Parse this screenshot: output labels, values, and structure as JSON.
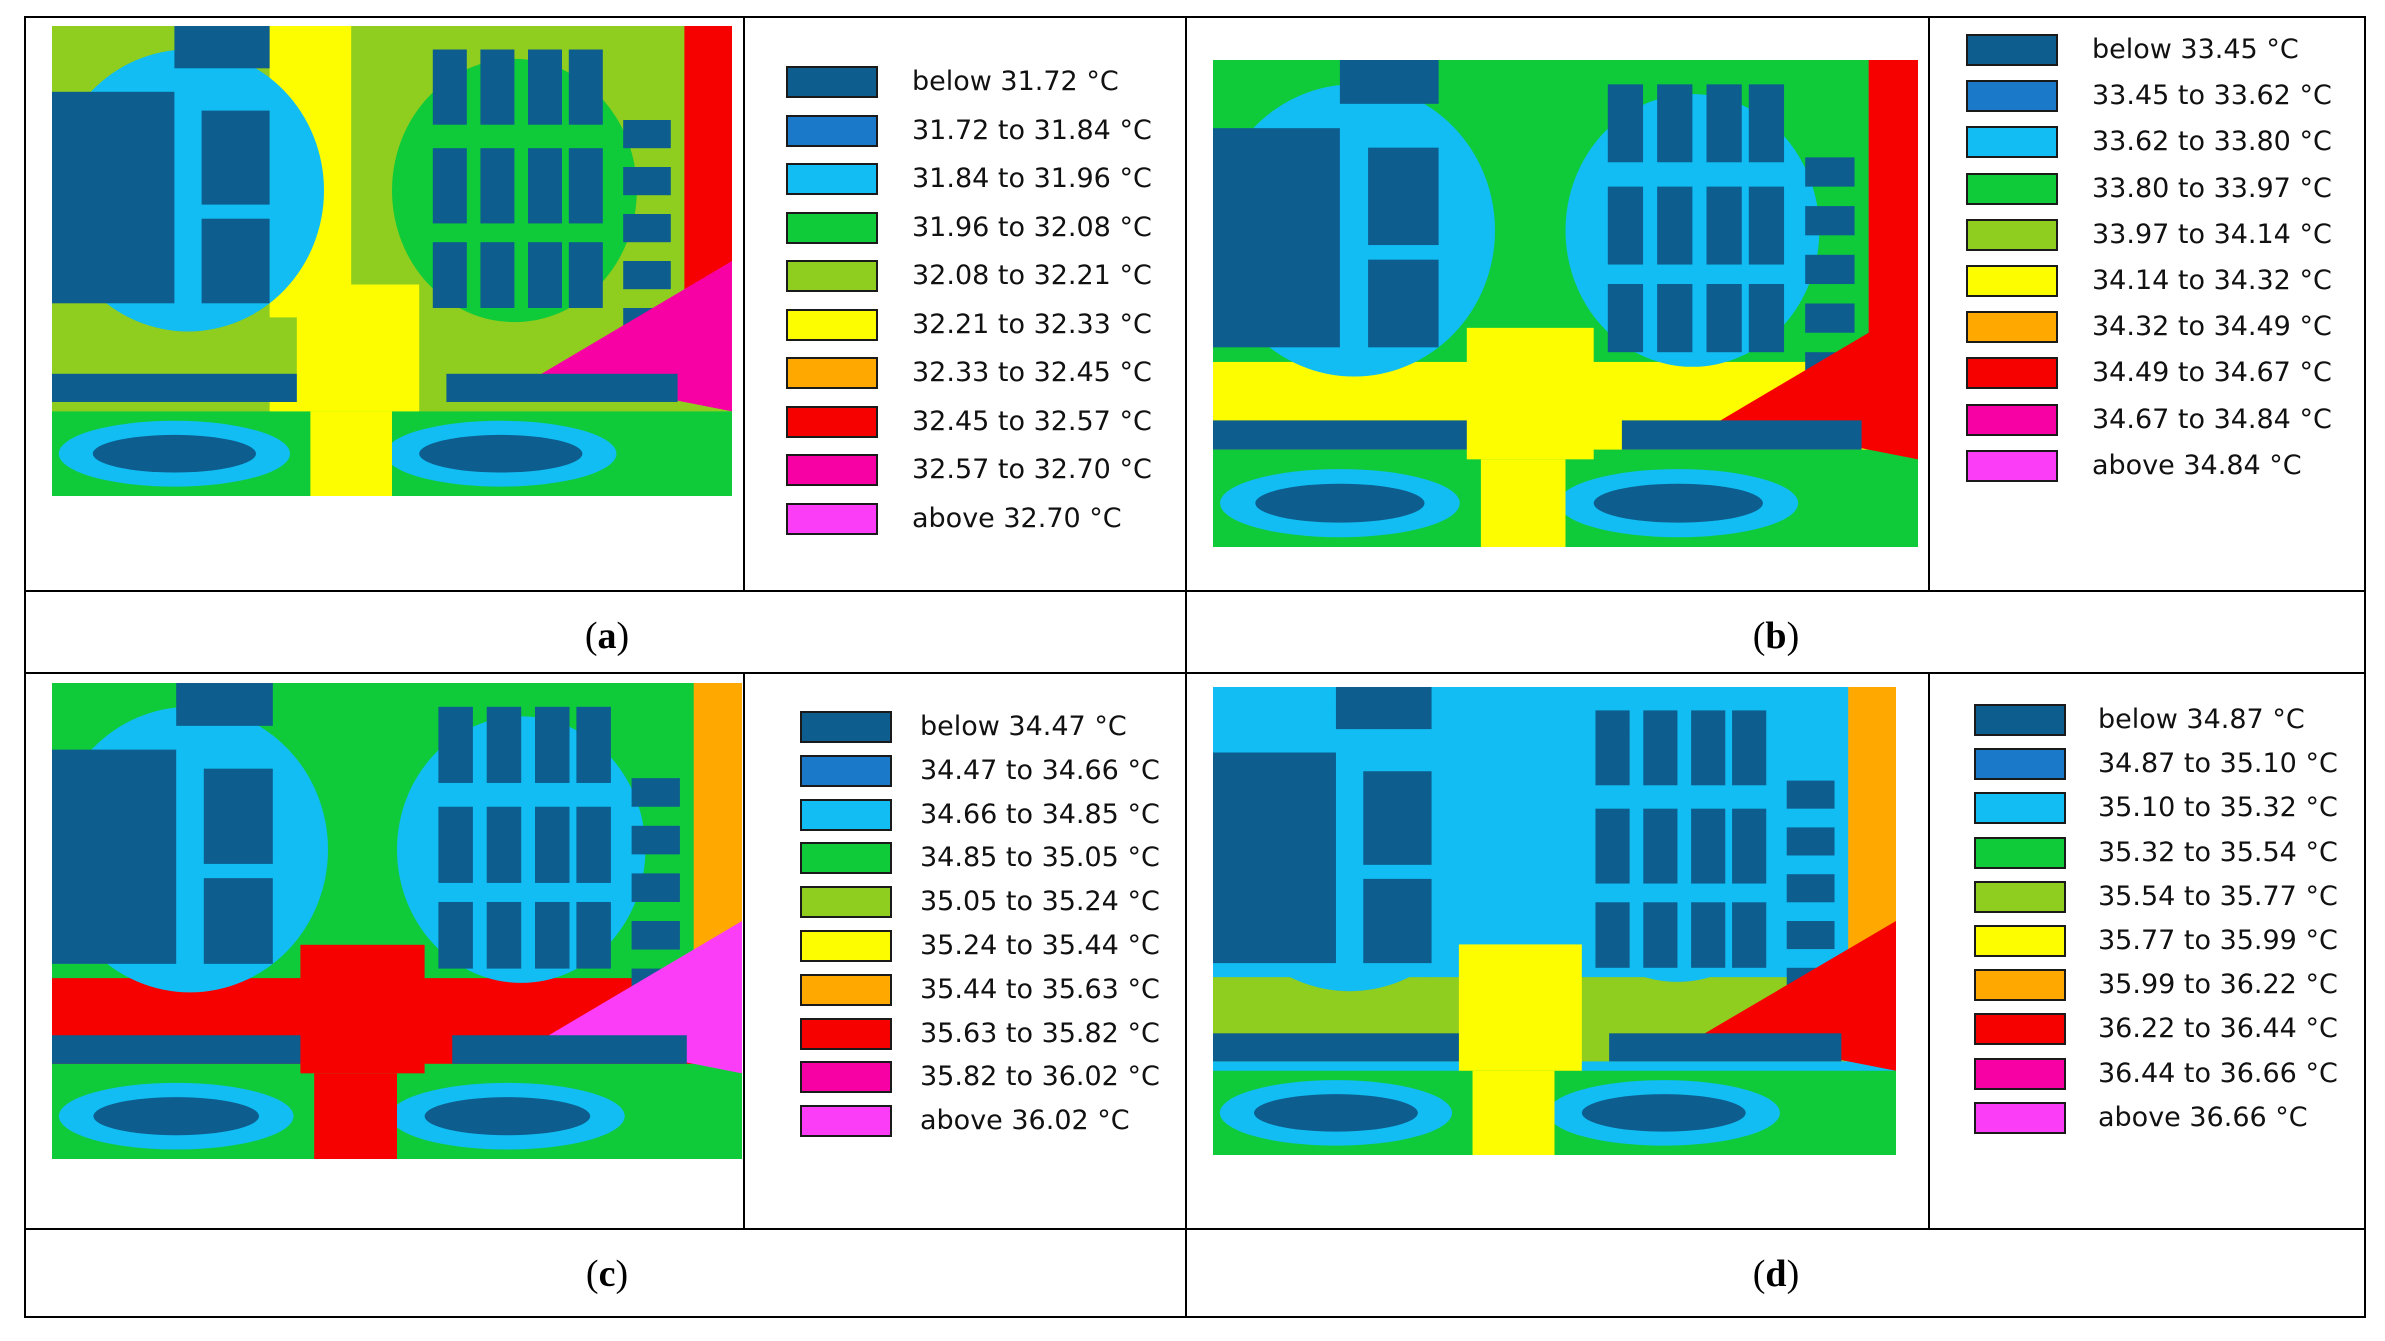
{
  "chart_data": [
    {
      "type": "heatmap",
      "panel": "a",
      "unit": "°C",
      "legend_colors": [
        "#0d5d8f",
        "#1a79c9",
        "#11bdf2",
        "#0fcb3a",
        "#8fcd1e",
        "#fdfd00",
        "#ffa800",
        "#f70000",
        "#f700a4",
        "#fb3df7"
      ],
      "legend_labels": [
        "below 31.72 °C",
        "31.72 to 31.84 °C",
        "31.84 to 31.96 °C",
        "31.96 to 32.08 °C",
        "32.08 to 32.21 °C",
        "32.21 to 32.33 °C",
        "32.33 to 32.45 °C",
        "32.45 to 32.57 °C",
        "32.57 to 32.70 °C",
        "above 32.70 °C"
      ]
    },
    {
      "type": "heatmap",
      "panel": "b",
      "unit": "°C",
      "legend_colors": [
        "#0d5d8f",
        "#1a79c9",
        "#11bdf2",
        "#0fcb3a",
        "#8fcd1e",
        "#fdfd00",
        "#ffa800",
        "#f70000",
        "#f700a4",
        "#fb3df7"
      ],
      "legend_labels": [
        "below 33.45 °C",
        "33.45 to 33.62 °C",
        "33.62 to 33.80 °C",
        "33.80 to 33.97 °C",
        "33.97 to 34.14 °C",
        "34.14 to 34.32 °C",
        "34.32 to 34.49 °C",
        "34.49 to 34.67 °C",
        "34.67 to 34.84 °C",
        "above 34.84 °C"
      ]
    },
    {
      "type": "heatmap",
      "panel": "c",
      "unit": "°C",
      "legend_colors": [
        "#0d5d8f",
        "#1a79c9",
        "#11bdf2",
        "#0fcb3a",
        "#8fcd1e",
        "#fdfd00",
        "#ffa800",
        "#f70000",
        "#f700a4",
        "#fb3df7"
      ],
      "legend_labels": [
        "below 34.47 °C",
        "34.47 to 34.66 °C",
        "34.66 to 34.85 °C",
        "34.85 to 35.05 °C",
        "35.05 to 35.24 °C",
        "35.24 to 35.44 °C",
        "35.44 to 35.63 °C",
        "35.63 to 35.82 °C",
        "35.82 to 36.02 °C",
        "above 36.02 °C"
      ]
    },
    {
      "type": "heatmap",
      "panel": "d",
      "unit": "°C",
      "legend_colors": [
        "#0d5d8f",
        "#1a79c9",
        "#11bdf2",
        "#0fcb3a",
        "#8fcd1e",
        "#fdfd00",
        "#ffa800",
        "#f70000",
        "#f700a4",
        "#fb3df7"
      ],
      "legend_labels": [
        "below 34.87 °C",
        "34.87 to 35.10 °C",
        "35.10 to 35.32 °C",
        "35.32 to 35.54 °C",
        "35.54 to 35.77 °C",
        "35.77 to 35.99 °C",
        "35.99 to 36.22 °C",
        "36.22 to 36.44 °C",
        "36.44 to 36.66 °C",
        "above 36.66 °C"
      ]
    }
  ],
  "captions": {
    "a": {
      "open": "(",
      "letter": "a",
      "close": ")"
    },
    "b": {
      "open": "(",
      "letter": "b",
      "close": ")"
    },
    "c": {
      "open": "(",
      "letter": "c",
      "close": ")"
    },
    "d": {
      "open": "(",
      "letter": "d",
      "close": ")"
    }
  }
}
